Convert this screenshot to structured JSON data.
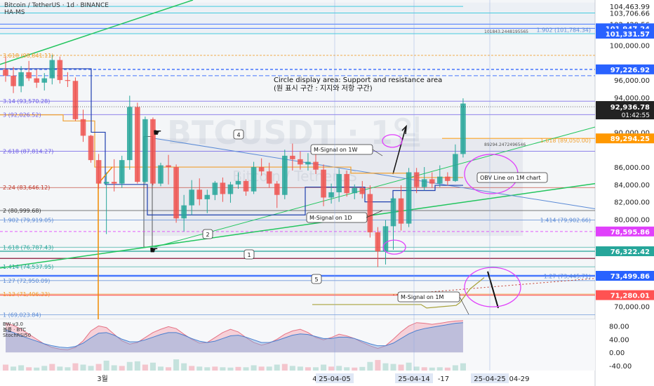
{
  "header": {
    "symbol_line": "Bitcoin / TetherUS · 1d · BINANCE",
    "chart_type": "HA-MS"
  },
  "watermark": {
    "ticker": "BTCUSDT · 1일",
    "name": "Bitcoin / TetherUS"
  },
  "colors": {
    "bull": "#26a69a",
    "bear": "#ef5350",
    "price_badge": "#2962ff",
    "magenta_badge": "#e040fb",
    "orange_badge": "#ff9800",
    "red_badge": "#ff5252",
    "green_line": "#22c55e",
    "blue_line": "#5b8bd6"
  },
  "chart_data": {
    "type": "candlestick",
    "timeframe": "1d",
    "ylim": [
      68500,
      105200
    ],
    "time_axis_ticks": [
      "3월",
      "4월",
      "25-04-05",
      "25-04-14",
      "-17",
      "25-04-25",
      "04-29"
    ],
    "candles": [
      {
        "o": 97200,
        "h": 98800,
        "l": 95800,
        "c": 96500
      },
      {
        "o": 96500,
        "h": 97500,
        "l": 94500,
        "c": 95300
      },
      {
        "o": 95300,
        "h": 97600,
        "l": 94600,
        "c": 96900
      },
      {
        "o": 96900,
        "h": 98200,
        "l": 95900,
        "c": 96200
      },
      {
        "o": 96200,
        "h": 97200,
        "l": 95100,
        "c": 95700
      },
      {
        "o": 95700,
        "h": 96800,
        "l": 94800,
        "c": 96200
      },
      {
        "o": 96200,
        "h": 98900,
        "l": 95500,
        "c": 98300
      },
      {
        "o": 98300,
        "h": 98700,
        "l": 95600,
        "c": 96000
      },
      {
        "o": 96000,
        "h": 96900,
        "l": 95200,
        "c": 95900
      },
      {
        "o": 95900,
        "h": 96300,
        "l": 91300,
        "c": 91500
      },
      {
        "o": 91500,
        "h": 92600,
        "l": 88900,
        "c": 89600
      },
      {
        "o": 89600,
        "h": 89700,
        "l": 86500,
        "c": 86800
      },
      {
        "o": 86800,
        "h": 87500,
        "l": 83500,
        "c": 84100
      },
      {
        "o": 84100,
        "h": 85400,
        "l": 78300,
        "c": 84300
      },
      {
        "o": 84300,
        "h": 86900,
        "l": 83200,
        "c": 84100
      },
      {
        "o": 84100,
        "h": 87300,
        "l": 83600,
        "c": 86800
      },
      {
        "o": 86800,
        "h": 94200,
        "l": 85700,
        "c": 92900
      },
      {
        "o": 92900,
        "h": 93400,
        "l": 84100,
        "c": 84300
      },
      {
        "o": 84300,
        "h": 91800,
        "l": 84100,
        "c": 91500
      },
      {
        "o": 91500,
        "h": 91700,
        "l": 83900,
        "c": 84100
      },
      {
        "o": 84100,
        "h": 86500,
        "l": 83800,
        "c": 86200
      },
      {
        "o": 86200,
        "h": 87400,
        "l": 84000,
        "c": 86000
      },
      {
        "o": 86000,
        "h": 86300,
        "l": 79600,
        "c": 80100
      },
      {
        "o": 80100,
        "h": 82800,
        "l": 78600,
        "c": 81600
      },
      {
        "o": 81600,
        "h": 84500,
        "l": 80500,
        "c": 83400
      },
      {
        "o": 83400,
        "h": 84700,
        "l": 81600,
        "c": 82300
      },
      {
        "o": 82300,
        "h": 83400,
        "l": 80700,
        "c": 82800
      },
      {
        "o": 82800,
        "h": 84400,
        "l": 82200,
        "c": 84200
      },
      {
        "o": 84200,
        "h": 84800,
        "l": 82000,
        "c": 82900
      },
      {
        "o": 82900,
        "h": 84300,
        "l": 81900,
        "c": 84000
      },
      {
        "o": 84000,
        "h": 85400,
        "l": 83500,
        "c": 84400
      },
      {
        "o": 84400,
        "h": 84600,
        "l": 82700,
        "c": 83200
      },
      {
        "o": 83200,
        "h": 86600,
        "l": 82900,
        "c": 86000
      },
      {
        "o": 86000,
        "h": 87000,
        "l": 85000,
        "c": 85500
      },
      {
        "o": 85500,
        "h": 86500,
        "l": 83600,
        "c": 84100
      },
      {
        "o": 84100,
        "h": 84400,
        "l": 81300,
        "c": 82800
      },
      {
        "o": 82800,
        "h": 88000,
        "l": 82300,
        "c": 87300
      },
      {
        "o": 87300,
        "h": 88700,
        "l": 85600,
        "c": 86900
      },
      {
        "o": 86900,
        "h": 87800,
        "l": 85700,
        "c": 86300
      },
      {
        "o": 86300,
        "h": 87600,
        "l": 85600,
        "c": 86600
      },
      {
        "o": 86600,
        "h": 88400,
        "l": 85200,
        "c": 85700
      },
      {
        "o": 85700,
        "h": 86300,
        "l": 81500,
        "c": 82500
      },
      {
        "o": 82500,
        "h": 84100,
        "l": 81800,
        "c": 83100
      },
      {
        "o": 83100,
        "h": 85800,
        "l": 82000,
        "c": 85200
      },
      {
        "o": 85200,
        "h": 85600,
        "l": 82600,
        "c": 83000
      },
      {
        "o": 83000,
        "h": 84000,
        "l": 82300,
        "c": 83600
      },
      {
        "o": 83600,
        "h": 84400,
        "l": 82400,
        "c": 82900
      },
      {
        "o": 82900,
        "h": 83900,
        "l": 77900,
        "c": 78500
      },
      {
        "o": 78500,
        "h": 79100,
        "l": 74500,
        "c": 76300
      },
      {
        "o": 76300,
        "h": 79900,
        "l": 74800,
        "c": 79200
      },
      {
        "o": 79200,
        "h": 82600,
        "l": 76500,
        "c": 82400
      },
      {
        "o": 82400,
        "h": 83900,
        "l": 78700,
        "c": 79500
      },
      {
        "o": 79500,
        "h": 85900,
        "l": 79100,
        "c": 85400
      },
      {
        "o": 85400,
        "h": 85900,
        "l": 83000,
        "c": 83700
      },
      {
        "o": 83700,
        "h": 86000,
        "l": 83300,
        "c": 84600
      },
      {
        "o": 84600,
        "h": 85400,
        "l": 83600,
        "c": 84100
      },
      {
        "o": 84100,
        "h": 86200,
        "l": 83700,
        "c": 84900
      },
      {
        "o": 84900,
        "h": 85400,
        "l": 83900,
        "c": 84400
      },
      {
        "o": 84400,
        "h": 88600,
        "l": 84300,
        "c": 87500
      },
      {
        "o": 87500,
        "h": 93900,
        "l": 87100,
        "c": 93300
      }
    ],
    "price_axis_labels": [
      {
        "value": 104463.99,
        "text": "104,463.99",
        "badge": false
      },
      {
        "value": 103706.66,
        "text": "103,706.66",
        "badge": false
      },
      {
        "value": 102429.56,
        "text": "102,429.56",
        "badge": false
      },
      {
        "value": 101947.24,
        "text": "101,947.24",
        "badge": true,
        "color": "#2962ff"
      },
      {
        "value": 101331.57,
        "text": "101,331.57",
        "badge": true,
        "color": "#2962ff"
      },
      {
        "value": 100000,
        "text": "100,000.00",
        "badge": false
      },
      {
        "value": 97226.92,
        "text": "97,226.92",
        "badge": true,
        "color": "#2962ff"
      },
      {
        "value": 96000,
        "text": "96,000.00",
        "badge": false
      },
      {
        "value": 94000,
        "text": "94,000.00",
        "badge": false
      },
      {
        "value": 90000,
        "text": "90,000.00",
        "badge": false
      },
      {
        "value": 89294.25,
        "text": "89,294.25",
        "badge": true,
        "color": "#ff9800"
      },
      {
        "value": 86000,
        "text": "86,000.00",
        "badge": false
      },
      {
        "value": 84000,
        "text": "84,000.00",
        "badge": false
      },
      {
        "value": 82000,
        "text": "82,000.00",
        "badge": false
      },
      {
        "value": 80000,
        "text": "80,000.00",
        "badge": false
      },
      {
        "value": 78595.86,
        "text": "78,595.86",
        "badge": true,
        "color": "#e040fb"
      },
      {
        "value": 76322.42,
        "text": "76,322.42",
        "badge": true,
        "color": "#26a69a"
      },
      {
        "value": 73499.86,
        "text": "73,499.86",
        "badge": true,
        "color": "#2962ff"
      },
      {
        "value": 71280.01,
        "text": "71,280.01",
        "badge": true,
        "color": "#ff5252"
      },
      {
        "value": 70000,
        "text": "70,000.00",
        "badge": false
      }
    ],
    "current_price": {
      "value": 92936.78,
      "text": "92,936.78",
      "countdown": "01:42:55"
    },
    "fib_labels": [
      {
        "value": 98841.11,
        "text": "3.618 (98,841.11)",
        "color": "#f0a030"
      },
      {
        "value": 93570.28,
        "text": "3.14 (93,570.28)",
        "color": "#6c5ce7"
      },
      {
        "value": 92026.52,
        "text": "3 (92,026.52)",
        "color": "#6c5ce7"
      },
      {
        "value": 87814.27,
        "text": "2.618 (87,814.27)",
        "color": "#6c5ce7"
      },
      {
        "value": 83646.12,
        "text": "2.24 (83,646.12)",
        "color": "#c0392b"
      },
      {
        "value": 80999.68,
        "text": "2 (80,999.68)",
        "color": "#333333"
      },
      {
        "value": 79919.05,
        "text": "1.902 (79,919.05)",
        "color": "#5b8bd6"
      },
      {
        "value": 76787.43,
        "text": "1.618 (76,787.43)",
        "color": "#26a69a"
      },
      {
        "value": 74537.95,
        "text": "1.414 (74,537.95)",
        "color": "#26a69a"
      },
      {
        "value": 72950.09,
        "text": "1.27 (72,950.09)",
        "color": "#5b8bd6"
      },
      {
        "value": 71406.33,
        "text": "1.13 (71,406.33)",
        "color": "#f0a030"
      },
      {
        "value": 69023.84,
        "text": "1 (69,023.84)",
        "color": "#5b8bd6"
      }
    ],
    "right_fib_labels": [
      {
        "value": 101784.34,
        "text": "1.902 (101,784.34)",
        "color": "#5b8bd6"
      },
      {
        "value": 89050.0,
        "text": "1.618 (89,050.00)",
        "color": "#f0a030"
      },
      {
        "value": 79902.66,
        "text": "1.414 (79,902.66)",
        "color": "#5b8bd6"
      },
      {
        "value": 73445.71,
        "text": "1.27 (73,445.71)",
        "color": "#5b8bd6"
      }
    ],
    "annotations": [
      {
        "type": "text",
        "text": "Circle display area: Support and resistance area"
      },
      {
        "type": "text",
        "text": "(원 표시 구간 : 지지와 저항 구간)"
      },
      {
        "type": "callout",
        "text": "M-Signal on 1W"
      },
      {
        "type": "callout",
        "text": "M-Signal on 1D"
      },
      {
        "type": "callout",
        "text": "M-Signal on 1M"
      },
      {
        "type": "callout",
        "text": "OBV Line on 1M chart"
      },
      {
        "type": "marker",
        "text": "1"
      },
      {
        "type": "marker",
        "text": "2"
      },
      {
        "type": "marker",
        "text": "4"
      },
      {
        "type": "marker",
        "text": "5"
      }
    ],
    "small_labels": [
      "101843.2448195565",
      "89294.2472496546"
    ],
    "indicator_panel": {
      "legend": [
        "BW v3.0",
        "볼륨 · BTC",
        "StochRSI50"
      ],
      "ylim": [
        -55,
        100
      ],
      "y_labels": [
        {
          "value": 80,
          "text": "80.00"
        },
        {
          "value": 40,
          "text": "40.00"
        },
        {
          "value": 0,
          "text": "0.00"
        },
        {
          "value": -40,
          "text": "-40.00"
        }
      ],
      "stoch_rsi": [
        88,
        82,
        70,
        55,
        40,
        25,
        15,
        10,
        8,
        15,
        35,
        65,
        80,
        75,
        55,
        35,
        25,
        30,
        45,
        60,
        70,
        78,
        72,
        55,
        40,
        28,
        30,
        45,
        60,
        70,
        62,
        45,
        30,
        22,
        28,
        40,
        55,
        65,
        70,
        60,
        45,
        38,
        45,
        55,
        50,
        42,
        30,
        20,
        12,
        20,
        40,
        62,
        80,
        90,
        88,
        85,
        88,
        92,
        95,
        96
      ],
      "blue_line": [
        68,
        60,
        50,
        42,
        34,
        26,
        20,
        16,
        14,
        18,
        28,
        44,
        58,
        60,
        52,
        40,
        32,
        32,
        38,
        46,
        54,
        60,
        60,
        52,
        42,
        34,
        30,
        34,
        42,
        50,
        52,
        46,
        38,
        30,
        30,
        36,
        44,
        52,
        56,
        54,
        48,
        42,
        42,
        46,
        46,
        42,
        34,
        26,
        20,
        20,
        28,
        42,
        56,
        66,
        72,
        76,
        80,
        84,
        88,
        90
      ],
      "volume": [
        18,
        12,
        16,
        10,
        9,
        14,
        20,
        12,
        10,
        22,
        18,
        14,
        20,
        30,
        16,
        14,
        26,
        28,
        18,
        24,
        12,
        10,
        34,
        22,
        14,
        12,
        10,
        12,
        10,
        9,
        11,
        10,
        16,
        12,
        12,
        18,
        20,
        14,
        12,
        10,
        10,
        18,
        12,
        14,
        10,
        9,
        11,
        26,
        32,
        22,
        20,
        18,
        24,
        12,
        10,
        9,
        10,
        9,
        16,
        22
      ]
    }
  }
}
